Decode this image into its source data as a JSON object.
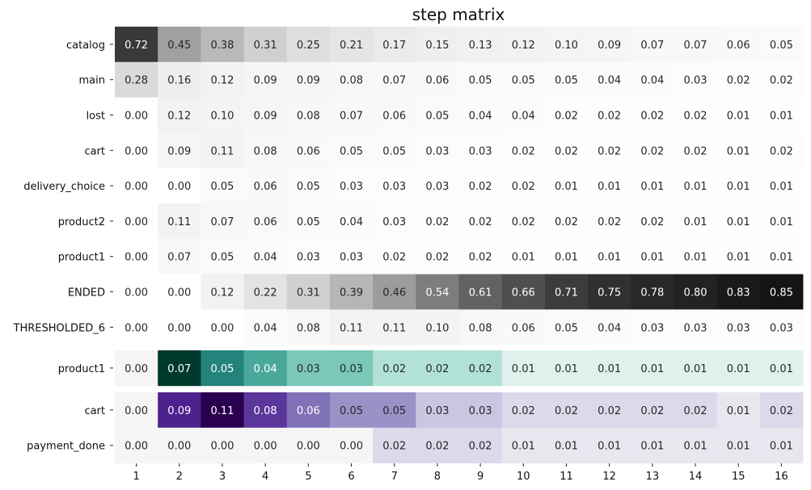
{
  "chart_data": [
    {
      "type": "heatmap",
      "title": "step matrix",
      "colormap": "greys",
      "columns": [
        "1",
        "2",
        "3",
        "4",
        "5",
        "6",
        "7",
        "8",
        "9",
        "10",
        "11",
        "12",
        "13",
        "14",
        "15",
        "16"
      ],
      "rows": [
        "catalog",
        "main",
        "lost",
        "cart",
        "delivery_choice",
        "product2",
        "product1",
        "ENDED",
        "THRESHOLDED_6"
      ],
      "values": [
        [
          0.72,
          0.45,
          0.38,
          0.31,
          0.25,
          0.21,
          0.17,
          0.15,
          0.13,
          0.12,
          0.1,
          0.09,
          0.07,
          0.07,
          0.06,
          0.05
        ],
        [
          0.28,
          0.16,
          0.12,
          0.09,
          0.09,
          0.08,
          0.07,
          0.06,
          0.05,
          0.05,
          0.05,
          0.04,
          0.04,
          0.03,
          0.02,
          0.02
        ],
        [
          0.0,
          0.12,
          0.1,
          0.09,
          0.08,
          0.07,
          0.06,
          0.05,
          0.04,
          0.04,
          0.02,
          0.02,
          0.02,
          0.02,
          0.01,
          0.01
        ],
        [
          0.0,
          0.09,
          0.11,
          0.08,
          0.06,
          0.05,
          0.05,
          0.03,
          0.03,
          0.02,
          0.02,
          0.02,
          0.02,
          0.02,
          0.01,
          0.02
        ],
        [
          0.0,
          0.0,
          0.05,
          0.06,
          0.05,
          0.03,
          0.03,
          0.03,
          0.02,
          0.02,
          0.01,
          0.01,
          0.01,
          0.01,
          0.01,
          0.01
        ],
        [
          0.0,
          0.11,
          0.07,
          0.06,
          0.05,
          0.04,
          0.03,
          0.02,
          0.02,
          0.02,
          0.02,
          0.02,
          0.02,
          0.01,
          0.01,
          0.01
        ],
        [
          0.0,
          0.07,
          0.05,
          0.04,
          0.03,
          0.03,
          0.02,
          0.02,
          0.02,
          0.01,
          0.01,
          0.01,
          0.01,
          0.01,
          0.01,
          0.01
        ],
        [
          0.0,
          0.0,
          0.12,
          0.22,
          0.31,
          0.39,
          0.46,
          0.54,
          0.61,
          0.66,
          0.71,
          0.75,
          0.78,
          0.8,
          0.83,
          0.85
        ],
        [
          0.0,
          0.0,
          0.0,
          0.04,
          0.08,
          0.11,
          0.11,
          0.1,
          0.08,
          0.06,
          0.05,
          0.04,
          0.03,
          0.03,
          0.03,
          0.03
        ]
      ]
    },
    {
      "type": "heatmap",
      "colormap": "teal",
      "columns": [
        "1",
        "2",
        "3",
        "4",
        "5",
        "6",
        "7",
        "8",
        "9",
        "10",
        "11",
        "12",
        "13",
        "14",
        "15",
        "16"
      ],
      "rows": [
        "product1"
      ],
      "values": [
        [
          0.0,
          0.07,
          0.05,
          0.04,
          0.03,
          0.03,
          0.02,
          0.02,
          0.02,
          0.01,
          0.01,
          0.01,
          0.01,
          0.01,
          0.01,
          0.01
        ]
      ]
    },
    {
      "type": "heatmap",
      "colormap": "purples",
      "columns": [
        "1",
        "2",
        "3",
        "4",
        "5",
        "6",
        "7",
        "8",
        "9",
        "10",
        "11",
        "12",
        "13",
        "14",
        "15",
        "16"
      ],
      "rows": [
        "cart",
        "payment_done"
      ],
      "values": [
        [
          0.0,
          0.09,
          0.11,
          0.08,
          0.06,
          0.05,
          0.05,
          0.03,
          0.03,
          0.02,
          0.02,
          0.02,
          0.02,
          0.02,
          0.01,
          0.02
        ],
        [
          0.0,
          0.0,
          0.0,
          0.0,
          0.0,
          0.0,
          0.02,
          0.02,
          0.02,
          0.01,
          0.01,
          0.01,
          0.01,
          0.01,
          0.01,
          0.01
        ]
      ]
    }
  ]
}
